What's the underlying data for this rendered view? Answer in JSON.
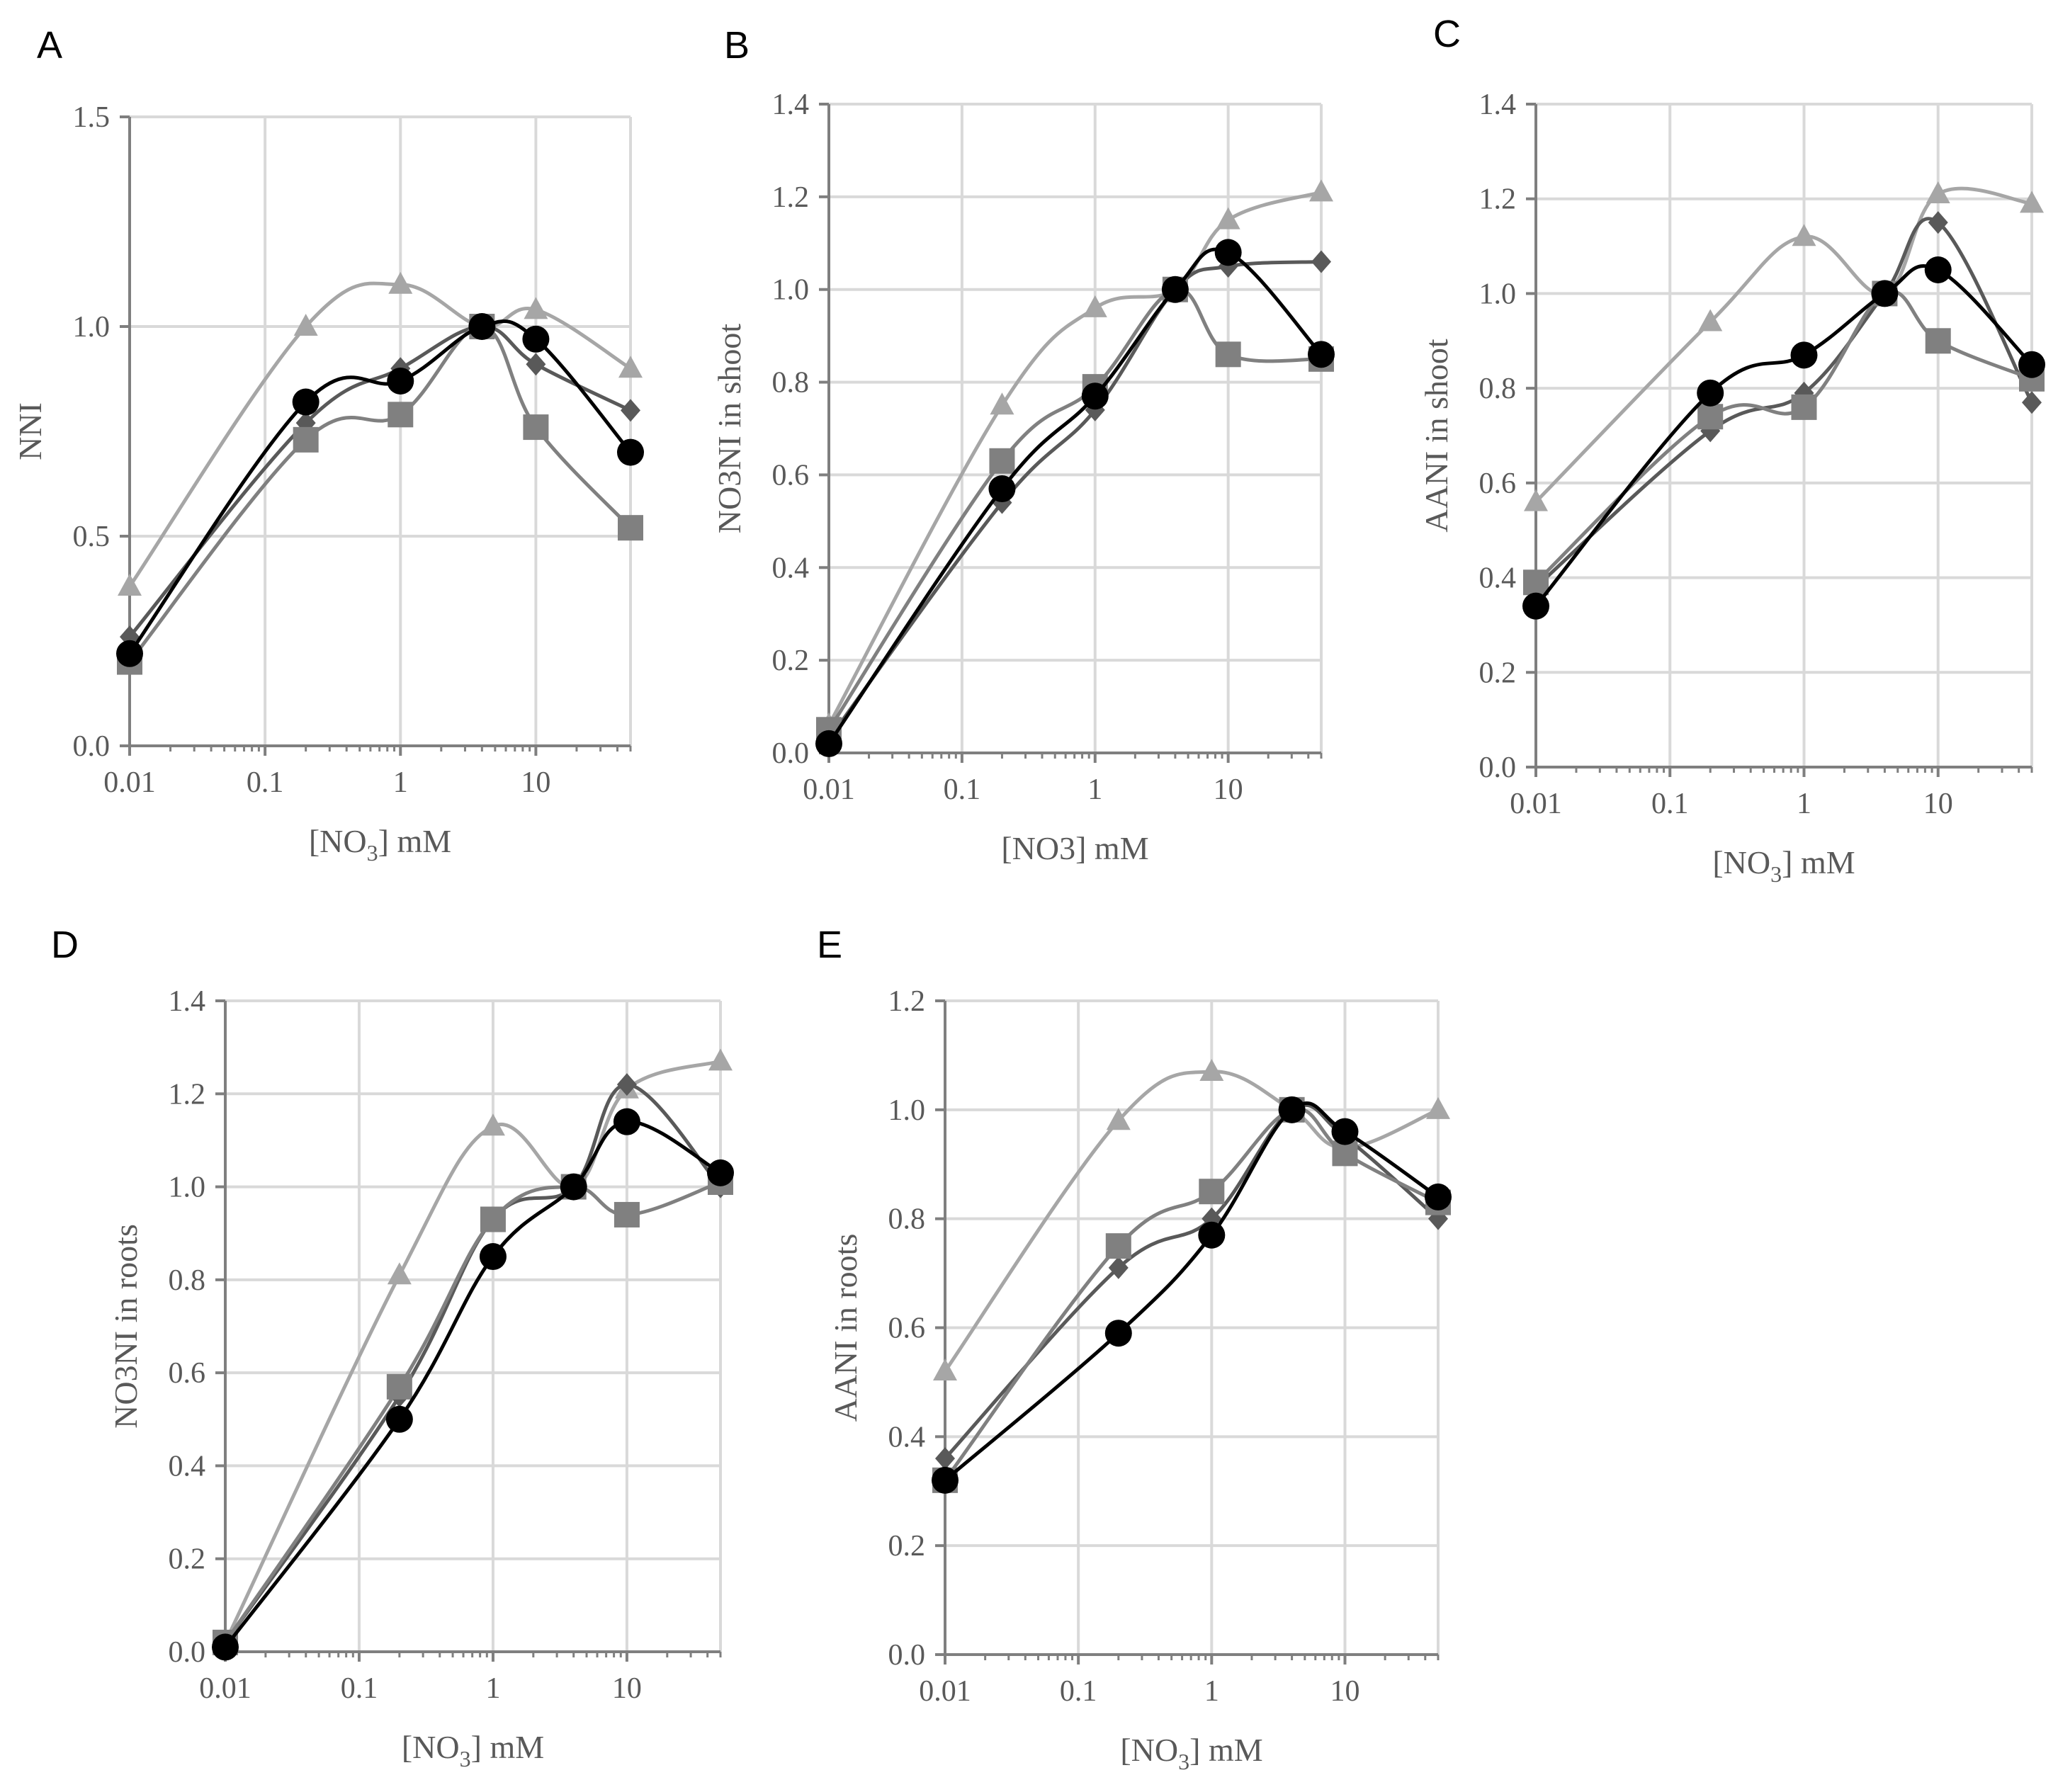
{
  "chart_data": [
    {
      "id": "A",
      "panel_label": "A",
      "type": "line",
      "ylabel": "NNI",
      "xlabel": {
        "pre": "[NO",
        "sub": "3",
        "post": "] mM"
      },
      "x_scale": "log",
      "xlim": [
        0.01,
        50
      ],
      "ylim": [
        0,
        1.5
      ],
      "x_ticks": [
        0.01,
        0.1,
        1,
        10
      ],
      "x_tick_labels": [
        "0.01",
        "0.1",
        "1",
        "10"
      ],
      "y_ticks": [
        0,
        0.5,
        1,
        1.5
      ],
      "y_tick_labels": [
        "0.0",
        "0.5",
        "1.0",
        "1.5"
      ],
      "x": [
        0.01,
        0.2,
        1,
        4,
        10,
        50
      ],
      "series": [
        {
          "marker": "triangle",
          "color": "#a6a6a6",
          "values": [
            0.38,
            1.0,
            1.1,
            1.0,
            1.04,
            0.9
          ]
        },
        {
          "marker": "diamond",
          "color": "#595959",
          "values": [
            0.26,
            0.77,
            0.9,
            1.0,
            0.91,
            0.8
          ]
        },
        {
          "marker": "square",
          "color": "#808080",
          "values": [
            0.2,
            0.73,
            0.79,
            1.0,
            0.76,
            0.52
          ]
        },
        {
          "marker": "circle",
          "color": "#000000",
          "values": [
            0.22,
            0.82,
            0.87,
            1.0,
            0.97,
            0.7
          ]
        }
      ]
    },
    {
      "id": "B",
      "panel_label": "B",
      "type": "line",
      "ylabel": "NO3NI in shoot",
      "xlabel": {
        "pre": "[NO3] mM",
        "sub": "",
        "post": ""
      },
      "x_scale": "log",
      "xlim": [
        0.01,
        50
      ],
      "ylim": [
        0,
        1.4
      ],
      "x_ticks": [
        0.01,
        0.1,
        1,
        10
      ],
      "x_tick_labels": [
        "0.01",
        "0.1",
        "1",
        "10"
      ],
      "y_ticks": [
        0,
        0.2,
        0.4,
        0.6,
        0.8,
        1.0,
        1.2,
        1.4
      ],
      "y_tick_labels": [
        "0.0",
        "0.2",
        "0.4",
        "0.6",
        "0.8",
        "1.0",
        "1.2",
        "1.4"
      ],
      "x": [
        0.01,
        0.2,
        1,
        4,
        10,
        50
      ],
      "series": [
        {
          "marker": "triangle",
          "color": "#a6a6a6",
          "values": [
            0.06,
            0.75,
            0.96,
            1.0,
            1.15,
            1.21
          ]
        },
        {
          "marker": "diamond",
          "color": "#595959",
          "values": [
            0.03,
            0.54,
            0.74,
            1.0,
            1.05,
            1.06
          ]
        },
        {
          "marker": "square",
          "color": "#808080",
          "values": [
            0.05,
            0.63,
            0.79,
            1.0,
            0.86,
            0.85
          ]
        },
        {
          "marker": "circle",
          "color": "#000000",
          "values": [
            0.02,
            0.57,
            0.77,
            1.0,
            1.08,
            0.86
          ]
        }
      ]
    },
    {
      "id": "C",
      "panel_label": "C",
      "type": "line",
      "ylabel": "AANI in shoot",
      "xlabel": {
        "pre": "[NO",
        "sub": "3",
        "post": "] mM"
      },
      "x_scale": "log",
      "xlim": [
        0.01,
        50
      ],
      "ylim": [
        0,
        1.4
      ],
      "x_ticks": [
        0.01,
        0.1,
        1,
        10
      ],
      "x_tick_labels": [
        "0.01",
        "0.1",
        "1",
        "10"
      ],
      "y_ticks": [
        0,
        0.2,
        0.4,
        0.6,
        0.8,
        1.0,
        1.2,
        1.4
      ],
      "y_tick_labels": [
        "0.0",
        "0.2",
        "0.4",
        "0.6",
        "0.8",
        "1.0",
        "1.2",
        "1.4"
      ],
      "x": [
        0.01,
        0.2,
        1,
        4,
        10,
        50
      ],
      "series": [
        {
          "marker": "triangle",
          "color": "#a6a6a6",
          "values": [
            0.56,
            0.94,
            1.12,
            1.0,
            1.21,
            1.19
          ]
        },
        {
          "marker": "diamond",
          "color": "#595959",
          "values": [
            0.38,
            0.71,
            0.79,
            1.0,
            1.15,
            0.77
          ]
        },
        {
          "marker": "square",
          "color": "#808080",
          "values": [
            0.39,
            0.74,
            0.76,
            1.0,
            0.9,
            0.82
          ]
        },
        {
          "marker": "circle",
          "color": "#000000",
          "values": [
            0.34,
            0.79,
            0.87,
            1.0,
            1.05,
            0.85
          ]
        }
      ]
    },
    {
      "id": "D",
      "panel_label": "D",
      "type": "line",
      "ylabel": "NO3NI in roots",
      "xlabel": {
        "pre": "[NO",
        "sub": "3",
        "post": "] mM"
      },
      "x_scale": "log",
      "xlim": [
        0.01,
        50
      ],
      "ylim": [
        0,
        1.4
      ],
      "x_ticks": [
        0.01,
        0.1,
        1,
        10
      ],
      "x_tick_labels": [
        "0.01",
        "0.1",
        "1",
        "10"
      ],
      "y_ticks": [
        0,
        0.2,
        0.4,
        0.6,
        0.8,
        1.0,
        1.2,
        1.4
      ],
      "y_tick_labels": [
        "0.0",
        "0.2",
        "0.4",
        "0.6",
        "0.8",
        "1.0",
        "1.2",
        "1.4"
      ],
      "x": [
        0.01,
        0.2,
        1,
        4,
        10,
        50
      ],
      "series": [
        {
          "marker": "triangle",
          "color": "#a6a6a6",
          "values": [
            0.02,
            0.81,
            1.13,
            1.0,
            1.21,
            1.27
          ]
        },
        {
          "marker": "diamond",
          "color": "#595959",
          "values": [
            0.02,
            0.55,
            0.93,
            1.0,
            1.22,
            1.0
          ]
        },
        {
          "marker": "square",
          "color": "#808080",
          "values": [
            0.02,
            0.57,
            0.93,
            1.0,
            0.94,
            1.01
          ]
        },
        {
          "marker": "circle",
          "color": "#000000",
          "values": [
            0.01,
            0.5,
            0.85,
            1.0,
            1.14,
            1.03
          ]
        }
      ]
    },
    {
      "id": "E",
      "panel_label": "E",
      "type": "line",
      "ylabel": "AANI in roots",
      "xlabel": {
        "pre": "[NO",
        "sub": "3",
        "post": "] mM"
      },
      "x_scale": "log",
      "xlim": [
        0.01,
        50
      ],
      "ylim": [
        0,
        1.2
      ],
      "x_ticks": [
        0.01,
        0.1,
        1,
        10
      ],
      "x_tick_labels": [
        "0.01",
        "0.1",
        "1",
        "10"
      ],
      "y_ticks": [
        0,
        0.2,
        0.4,
        0.6,
        0.8,
        1.0,
        1.2
      ],
      "y_tick_labels": [
        "0.0",
        "0.2",
        "0.4",
        "0.6",
        "0.8",
        "1.0",
        "1.2"
      ],
      "x": [
        0.01,
        0.2,
        1,
        4,
        10,
        50
      ],
      "series": [
        {
          "marker": "triangle",
          "color": "#a6a6a6",
          "values": [
            0.52,
            0.98,
            1.07,
            1.0,
            0.93,
            1.0
          ]
        },
        {
          "marker": "diamond",
          "color": "#595959",
          "values": [
            0.36,
            0.71,
            0.8,
            1.0,
            0.95,
            0.8
          ]
        },
        {
          "marker": "square",
          "color": "#808080",
          "values": [
            0.32,
            0.75,
            0.85,
            1.0,
            0.92,
            0.83
          ]
        },
        {
          "marker": "circle",
          "color": "#000000",
          "values": [
            0.32,
            0.59,
            0.77,
            1.0,
            0.96,
            0.84
          ]
        }
      ]
    }
  ]
}
